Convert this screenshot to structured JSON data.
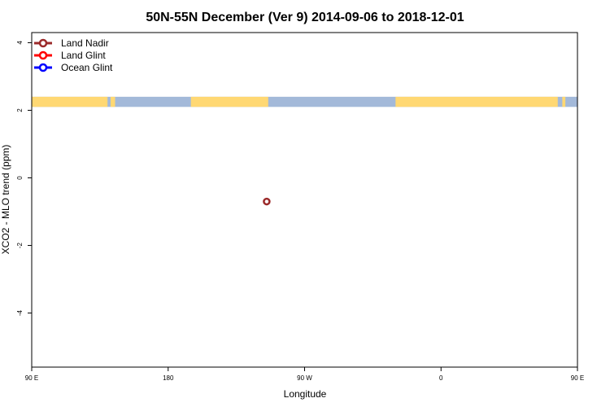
{
  "chart_data": {
    "type": "scatter",
    "title": "50N-55N December (Ver 9)   2014-09-06 to 2018-12-01",
    "xlabel": "Longitude",
    "ylabel": "XCO2 - MLO trend (ppm)",
    "xlim": [
      90,
      450
    ],
    "ylim": [
      -5.6,
      4.3
    ],
    "x_ticks": [
      {
        "value": 90,
        "label": "90 E"
      },
      {
        "value": 180,
        "label": "180"
      },
      {
        "value": 270,
        "label": "90 W"
      },
      {
        "value": 360,
        "label": "0"
      },
      {
        "value": 450,
        "label": "90 E"
      }
    ],
    "y_ticks": [
      {
        "value": 4,
        "label": "4"
      },
      {
        "value": 2,
        "label": "2"
      },
      {
        "value": 0,
        "label": "0"
      },
      {
        "value": -2,
        "label": "-2"
      },
      {
        "value": -4,
        "label": "-4"
      }
    ],
    "series": [
      {
        "name": "Land Nadir",
        "color": "#9b2a2a",
        "points": [
          {
            "x": 245,
            "y": -0.7
          }
        ]
      },
      {
        "name": "Land Glint",
        "color": "#ff0000",
        "points": []
      },
      {
        "name": "Ocean Glint",
        "color": "#0000ff",
        "points": []
      }
    ],
    "legend_position": "top-left",
    "grid": false,
    "land_mask_strip": {
      "y_range": [
        2.1,
        2.4
      ],
      "ocean_color": "#a3b9d9",
      "land_color": "#ffd873",
      "land_segments": [
        [
          90,
          140
        ],
        [
          142,
          145
        ],
        [
          195,
          246
        ],
        [
          330,
          437
        ],
        [
          440,
          442
        ]
      ]
    }
  }
}
